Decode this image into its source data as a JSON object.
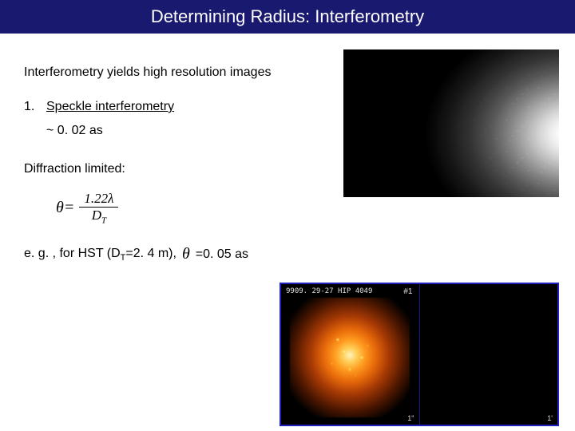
{
  "title": "Determining Radius: Interferometry",
  "intro": "Interferometry yields high resolution images",
  "list": {
    "num": "1.",
    "label": "Speckle interferometry"
  },
  "resolution_line": "~ 0. 02 as",
  "diffraction": "Diffraction limited:",
  "formula": {
    "lhs": "θ",
    "eq": " = ",
    "num": "1.22λ",
    "den_left": "D",
    "den_sub": "T"
  },
  "example": {
    "prefix": "e. g. , for HST (D",
    "sub": "T",
    "mid": "=2. 4 m),",
    "theta": "θ",
    "suffix": "=0. 05 as"
  },
  "panel": {
    "id_label": "9909. 29-27 HIP 4049",
    "num": "#1",
    "scale_left": "1\"",
    "scale_right": "1'"
  },
  "colors": {
    "title_bg": "#191970",
    "border": "#2020c0"
  }
}
